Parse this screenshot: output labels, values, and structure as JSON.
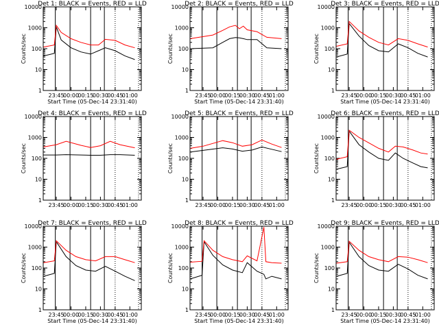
{
  "chart_data": [
    {
      "type": "line",
      "title": "Det 1: BLACK = Events, RED = LLD",
      "xlabel": "Start Time (05-Dec-14 23:31:40)",
      "ylabel": "Counts/sec",
      "yscale": "log",
      "ylim": [
        1,
        10000
      ],
      "x_ticks": [
        "23:45",
        "00:00",
        "00:15",
        "00:30",
        "00:45",
        "01:00"
      ],
      "y_ticks": [
        "1",
        "10",
        "100",
        "1000",
        "10000"
      ],
      "x": [
        "23:32",
        "23:43",
        "23:45",
        "23:50",
        "00:00",
        "00:10",
        "00:20",
        "00:28",
        "00:35",
        "00:45",
        "00:55",
        "01:05"
      ],
      "series": [
        {
          "color": "#000000",
          "values": [
            45,
            60,
            1100,
            260,
            110,
            70,
            55,
            80,
            110,
            80,
            45,
            30
          ]
        },
        {
          "color": "#ff0000",
          "values": [
            120,
            150,
            1300,
            600,
            300,
            200,
            150,
            150,
            280,
            250,
            150,
            110
          ]
        }
      ]
    },
    {
      "type": "line",
      "title": "Det 2: BLACK = Events, RED = LLD",
      "xlabel": "Start Time (05-Dec-14 23:31:40)",
      "ylabel": "Counts/sec",
      "yscale": "log",
      "ylim": [
        1,
        10000
      ],
      "x_ticks": [
        "23:45",
        "00:00",
        "00:15",
        "00:30",
        "00:45",
        "01:00"
      ],
      "y_ticks": [
        "1",
        "10",
        "100",
        "1000",
        "10000"
      ],
      "x": [
        "23:32",
        "23:55",
        "00:05",
        "00:12",
        "00:18",
        "00:22",
        "00:26",
        "00:30",
        "00:40",
        "00:50",
        "01:05"
      ],
      "series": [
        {
          "color": "#000000",
          "values": [
            100,
            110,
            200,
            300,
            340,
            330,
            300,
            270,
            270,
            110,
            100
          ]
        },
        {
          "color": "#ff0000",
          "values": [
            300,
            450,
            750,
            1100,
            1300,
            900,
            1200,
            800,
            650,
            350,
            300
          ]
        }
      ]
    },
    {
      "type": "line",
      "title": "Det 3: BLACK = Events, RED = LLD",
      "xlabel": "Start Time (05-Dec-14 23:31:40)",
      "ylabel": "Counts/sec",
      "yscale": "log",
      "ylim": [
        1,
        10000
      ],
      "x_ticks": [
        "23:45",
        "00:00",
        "00:15",
        "00:30",
        "00:45",
        "01:00"
      ],
      "y_ticks": [
        "1",
        "10",
        "100",
        "1000",
        "10000"
      ],
      "x": [
        "23:32",
        "23:43",
        "23:45",
        "23:55",
        "00:05",
        "00:15",
        "00:25",
        "00:35",
        "00:45",
        "00:55",
        "01:05"
      ],
      "series": [
        {
          "color": "#000000",
          "values": [
            40,
            55,
            1600,
            400,
            140,
            80,
            70,
            170,
            110,
            60,
            40
          ]
        },
        {
          "color": "#ff0000",
          "values": [
            130,
            170,
            2000,
            700,
            350,
            200,
            150,
            300,
            250,
            170,
            120
          ]
        }
      ]
    },
    {
      "type": "line",
      "title": "Det 4: BLACK = Events, RED = LLD",
      "xlabel": "",
      "ylabel": "Counts/sec",
      "yscale": "log",
      "ylim": [
        1,
        10000
      ],
      "x_ticks": [
        "23:45",
        "00:00",
        "00:15",
        "00:30",
        "00:45",
        "01:00"
      ],
      "y_ticks": [
        "1",
        "10",
        "100",
        "1000",
        "10000"
      ],
      "x": [
        "23:32",
        "23:45",
        "23:55",
        "00:10",
        "00:20",
        "00:30",
        "00:40",
        "00:50",
        "01:05"
      ],
      "series": [
        {
          "color": "#000000",
          "values": [
            145,
            145,
            150,
            145,
            140,
            140,
            150,
            150,
            140
          ]
        },
        {
          "color": "#ff0000",
          "values": [
            350,
            450,
            650,
            420,
            330,
            400,
            650,
            450,
            320
          ]
        }
      ]
    },
    {
      "type": "line",
      "title": "Det 5: BLACK = Events, RED = LLD",
      "xlabel": "",
      "ylabel": "Counts/sec",
      "yscale": "log",
      "ylim": [
        1,
        10000
      ],
      "x_ticks": [
        "23:45",
        "00:00",
        "00:15",
        "00:30",
        "00:45",
        "01:00"
      ],
      "y_ticks": [
        "1",
        "10",
        "100",
        "1000",
        "10000"
      ],
      "x": [
        "23:32",
        "23:45",
        "00:05",
        "00:15",
        "00:25",
        "00:35",
        "00:45",
        "00:55",
        "01:05"
      ],
      "series": [
        {
          "color": "#000000",
          "values": [
            200,
            240,
            320,
            280,
            220,
            250,
            350,
            270,
            210
          ]
        },
        {
          "color": "#ff0000",
          "values": [
            300,
            380,
            700,
            560,
            380,
            450,
            750,
            480,
            330
          ]
        }
      ]
    },
    {
      "type": "line",
      "title": "Det 6: BLACK = Events, RED = LLD",
      "xlabel": "",
      "ylabel": "Counts/sec",
      "yscale": "log",
      "ylim": [
        1,
        10000
      ],
      "x_ticks": [
        "23:45",
        "00:00",
        "00:15",
        "00:30",
        "00:45",
        "01:00"
      ],
      "y_ticks": [
        "1",
        "10",
        "100",
        "1000",
        "10000"
      ],
      "x": [
        "23:32",
        "23:43",
        "23:45",
        "23:55",
        "00:05",
        "00:15",
        "00:25",
        "00:32",
        "00:40",
        "00:50",
        "00:58",
        "01:05"
      ],
      "series": [
        {
          "color": "#000000",
          "values": [
            30,
            40,
            2000,
            450,
            200,
            100,
            80,
            180,
            100,
            60,
            40,
            35
          ]
        },
        {
          "color": "#ff0000",
          "values": [
            90,
            120,
            2200,
            1000,
            550,
            300,
            200,
            380,
            350,
            250,
            180,
            160
          ]
        }
      ]
    },
    {
      "type": "line",
      "title": "Det 7: BLACK = Events, RED = LLD",
      "xlabel": "Start Time (05-Dec-14 23:31:40)",
      "ylabel": "Counts/sec",
      "yscale": "log",
      "ylim": [
        1,
        10000
      ],
      "x_ticks": [
        "23:45",
        "00:00",
        "00:15",
        "00:30",
        "00:45",
        "01:00"
      ],
      "y_ticks": [
        "1",
        "10",
        "100",
        "1000",
        "10000"
      ],
      "x": [
        "23:32",
        "23:43",
        "23:45",
        "23:55",
        "00:05",
        "00:15",
        "00:25",
        "00:35",
        "00:45",
        "00:55",
        "01:05"
      ],
      "series": [
        {
          "color": "#000000",
          "values": [
            40,
            55,
            1800,
            350,
            130,
            80,
            70,
            120,
            70,
            40,
            25
          ]
        },
        {
          "color": "#ff0000",
          "values": [
            180,
            220,
            2000,
            700,
            350,
            250,
            220,
            350,
            350,
            250,
            180
          ]
        }
      ]
    },
    {
      "type": "line",
      "title": "Det 8: BLACK = Events, RED = LLD",
      "xlabel": "Start Time (05-Dec-14 23:31:40)",
      "ylabel": "Counts/sec",
      "yscale": "log",
      "ylim": [
        1,
        10000
      ],
      "x_ticks": [
        "23:45",
        "00:00",
        "00:15",
        "00:30",
        "00:45",
        "01:00"
      ],
      "y_ticks": [
        "1",
        "10",
        "100",
        "1000",
        "10000"
      ],
      "x": [
        "23:32",
        "23:44",
        "23:46",
        "23:55",
        "00:05",
        "00:15",
        "00:25",
        "00:30",
        "00:40",
        "00:47",
        "00:49",
        "00:55",
        "01:05"
      ],
      "series": [
        {
          "color": "#000000",
          "values": [
            30,
            45,
            1800,
            400,
            140,
            80,
            60,
            180,
            70,
            50,
            30,
            40,
            30
          ]
        },
        {
          "color": "#ff0000",
          "values": [
            190,
            210,
            2000,
            700,
            350,
            250,
            200,
            380,
            220,
            9000,
            200,
            180,
            170
          ]
        }
      ]
    },
    {
      "type": "line",
      "title": "Det 9: BLACK = Events, RED = LLD",
      "xlabel": "Start Time (05-Dec-14 23:31:40)",
      "ylabel": "Counts/sec",
      "yscale": "log",
      "ylim": [
        1,
        10000
      ],
      "x_ticks": [
        "23:45",
        "00:00",
        "00:15",
        "00:30",
        "00:45",
        "01:00"
      ],
      "y_ticks": [
        "1",
        "10",
        "100",
        "1000",
        "10000"
      ],
      "x": [
        "23:32",
        "23:43",
        "23:45",
        "23:55",
        "00:05",
        "00:15",
        "00:25",
        "00:35",
        "00:45",
        "00:55",
        "01:05"
      ],
      "series": [
        {
          "color": "#000000",
          "values": [
            40,
            55,
            1700,
            350,
            130,
            80,
            70,
            150,
            90,
            45,
            30
          ]
        },
        {
          "color": "#ff0000",
          "values": [
            170,
            200,
            1900,
            700,
            350,
            250,
            200,
            350,
            330,
            250,
            180
          ]
        }
      ]
    }
  ]
}
